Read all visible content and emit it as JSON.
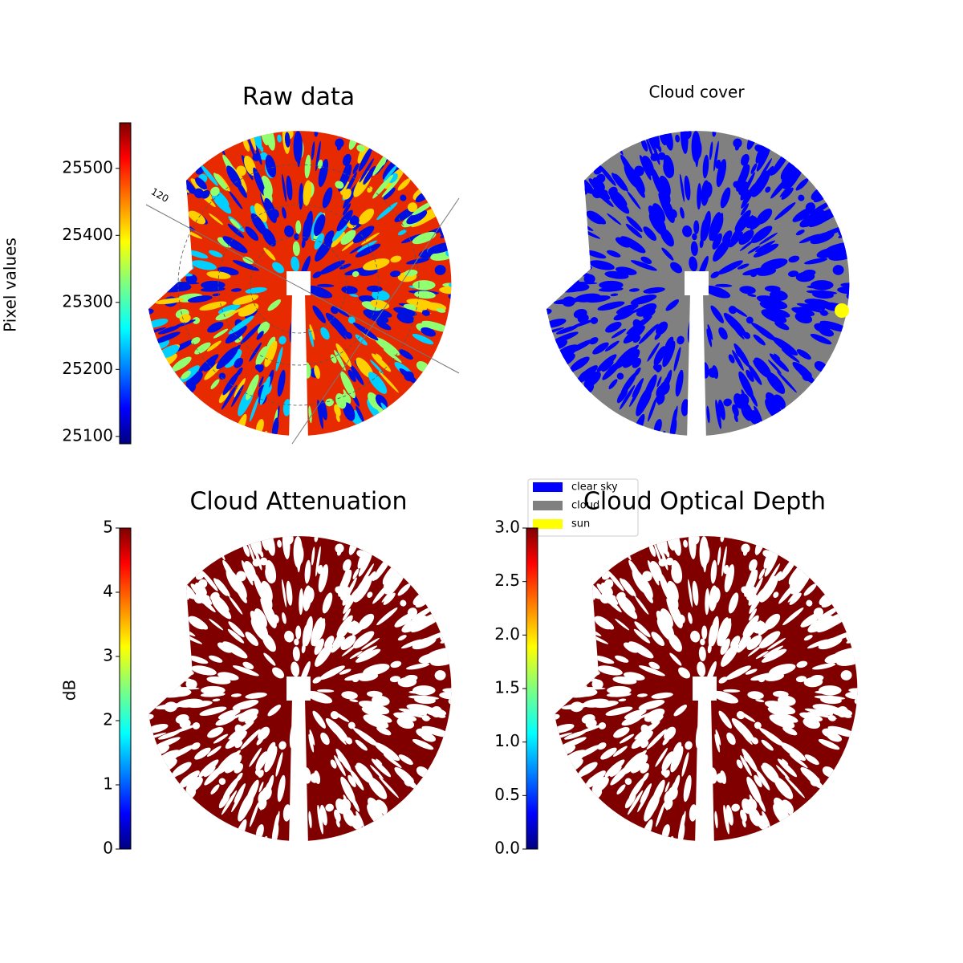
{
  "chart_data": [
    {
      "type": "image",
      "title": "Raw data",
      "annotations": [
        "120"
      ],
      "colorbar": {
        "label": "Pixel values",
        "lim": [
          25089,
          25568
        ],
        "ticks": [
          25100,
          25200,
          25300,
          25400,
          25500
        ],
        "colormap": "jet"
      }
    },
    {
      "type": "image",
      "title": "Cloud cover",
      "legend": {
        "entries": [
          {
            "name": "clear sky",
            "color": "#0000ff"
          },
          {
            "name": "cloud",
            "color": "#808080"
          },
          {
            "name": "sun",
            "color": "#ffff00"
          }
        ]
      }
    },
    {
      "type": "image",
      "title": "Cloud Attenuation",
      "color": "#800000",
      "colorbar": {
        "label": "dB",
        "lim": [
          0,
          5
        ],
        "ticks": [
          0,
          1,
          2,
          3,
          4,
          5
        ],
        "colormap": "jet"
      }
    },
    {
      "type": "image",
      "title": "Cloud Optical Depth",
      "color": "#800000",
      "colorbar": {
        "lim": [
          0,
          3
        ],
        "ticks": [
          {
            "value": 0,
            "label": "0.0"
          },
          {
            "value": 0.5,
            "label": "0.5"
          },
          {
            "value": 1,
            "label": "1.0"
          },
          {
            "value": 1.5,
            "label": "1.5"
          },
          {
            "value": 2,
            "label": "2.0"
          },
          {
            "value": 2.5,
            "label": "2.5"
          },
          {
            "value": 3,
            "label": "3.0"
          }
        ],
        "colormap": "jet"
      }
    }
  ]
}
